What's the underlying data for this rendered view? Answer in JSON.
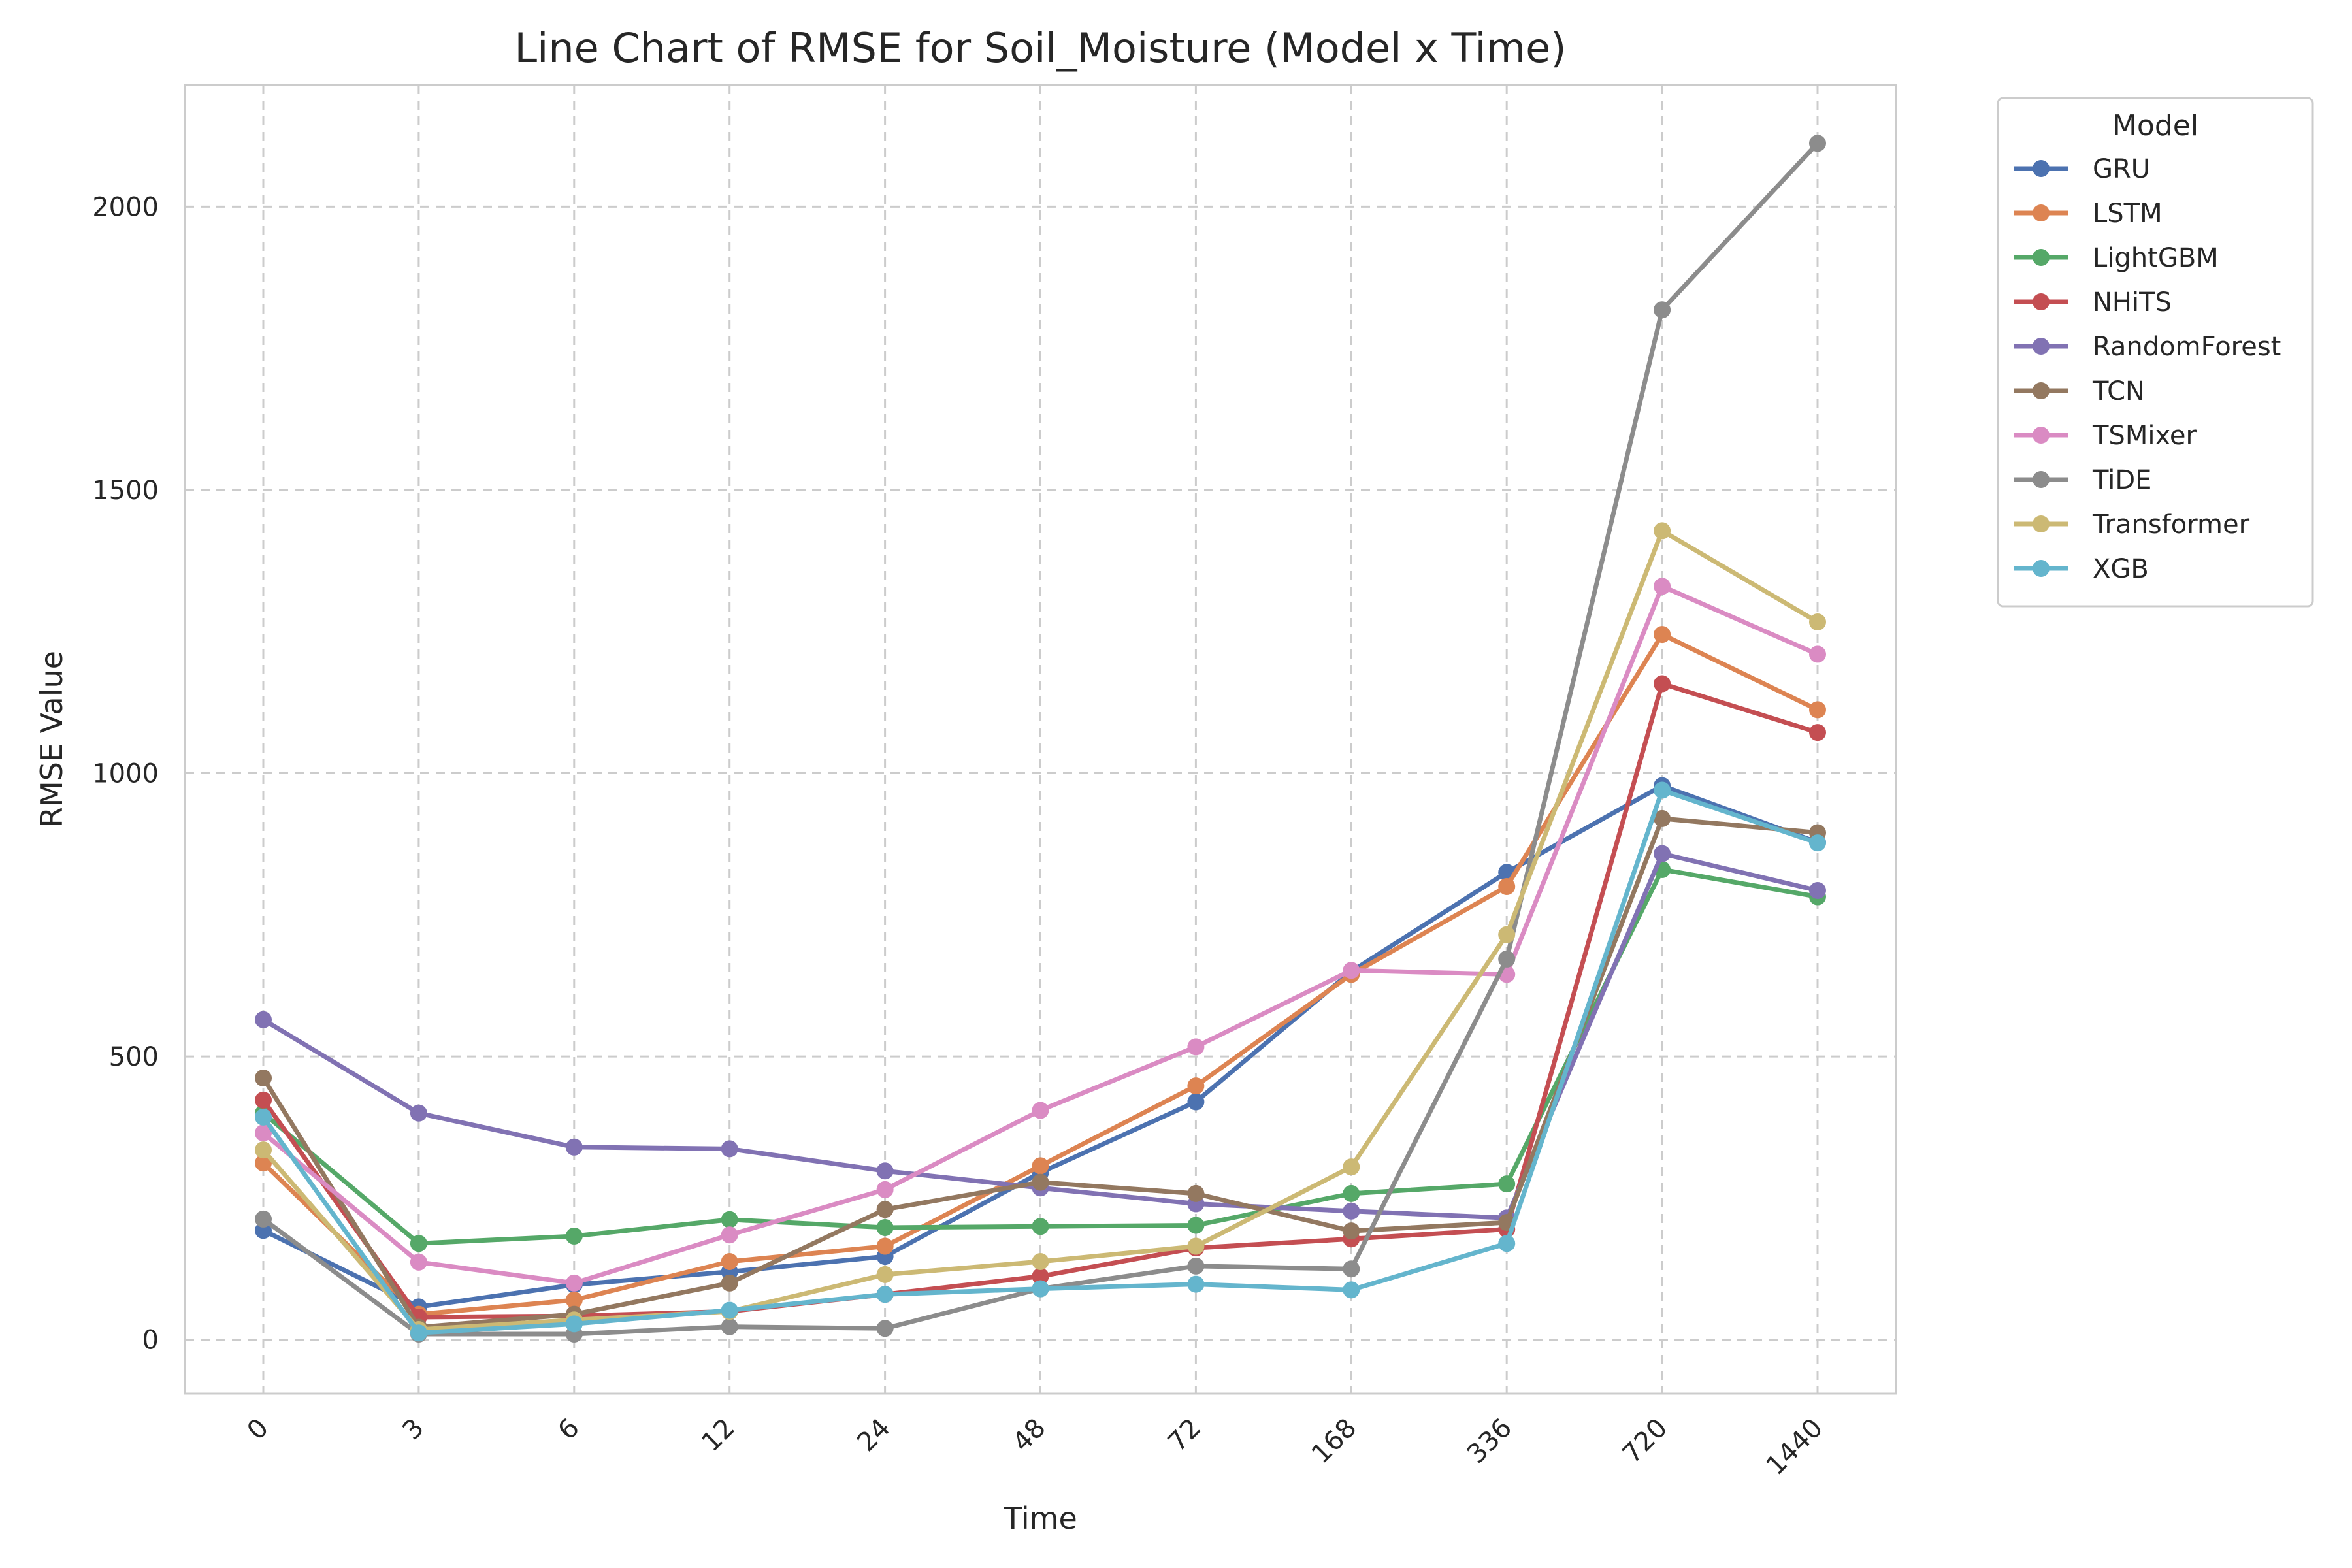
{
  "chart_data": {
    "type": "line",
    "title": "Line Chart of RMSE for Soil_Moisture (Model x Time)",
    "xlabel": "Time",
    "ylabel": "RMSE Value",
    "categories": [
      "0",
      "3",
      "6",
      "12",
      "24",
      "48",
      "72",
      "168",
      "336",
      "720",
      "1440"
    ],
    "ylim": [
      -95,
      2215
    ],
    "yticks": [
      0,
      500,
      1000,
      1500,
      2000
    ],
    "grid": true,
    "legend": {
      "title": "Model",
      "placement": "outside-top-right"
    },
    "series": [
      {
        "name": "GRU",
        "color": "#4c72b0",
        "values": [
          193,
          58,
          97,
          120,
          147,
          295,
          420,
          650,
          825,
          978,
          878
        ]
      },
      {
        "name": "LSTM",
        "color": "#dd8452",
        "values": [
          312,
          45,
          70,
          138,
          165,
          307,
          448,
          645,
          800,
          1245,
          1112
        ]
      },
      {
        "name": "LightGBM",
        "color": "#55a868",
        "values": [
          400,
          170,
          183,
          212,
          198,
          200,
          202,
          258,
          275,
          830,
          782
        ]
      },
      {
        "name": "NHiTS",
        "color": "#c44e52",
        "values": [
          423,
          40,
          42,
          50,
          80,
          112,
          162,
          178,
          195,
          1158,
          1072
        ]
      },
      {
        "name": "RandomForest",
        "color": "#8172b3",
        "values": [
          565,
          400,
          340,
          337,
          298,
          268,
          240,
          227,
          215,
          858,
          793
        ]
      },
      {
        "name": "TCN",
        "color": "#937860",
        "values": [
          462,
          22,
          45,
          100,
          230,
          278,
          258,
          192,
          207,
          920,
          895
        ]
      },
      {
        "name": "TSMixer",
        "color": "#da8bc3",
        "values": [
          365,
          137,
          100,
          185,
          265,
          405,
          517,
          652,
          645,
          1330,
          1210
        ]
      },
      {
        "name": "TiDE",
        "color": "#8c8c8c",
        "values": [
          213,
          10,
          10,
          23,
          20,
          90,
          130,
          125,
          672,
          1818,
          2112
        ]
      },
      {
        "name": "Transformer",
        "color": "#ccb974",
        "values": [
          335,
          18,
          35,
          50,
          115,
          138,
          165,
          305,
          715,
          1428,
          1267
        ]
      },
      {
        "name": "XGB",
        "color": "#64b5cd",
        "values": [
          393,
          12,
          28,
          52,
          80,
          90,
          98,
          88,
          170,
          970,
          877
        ]
      }
    ]
  }
}
